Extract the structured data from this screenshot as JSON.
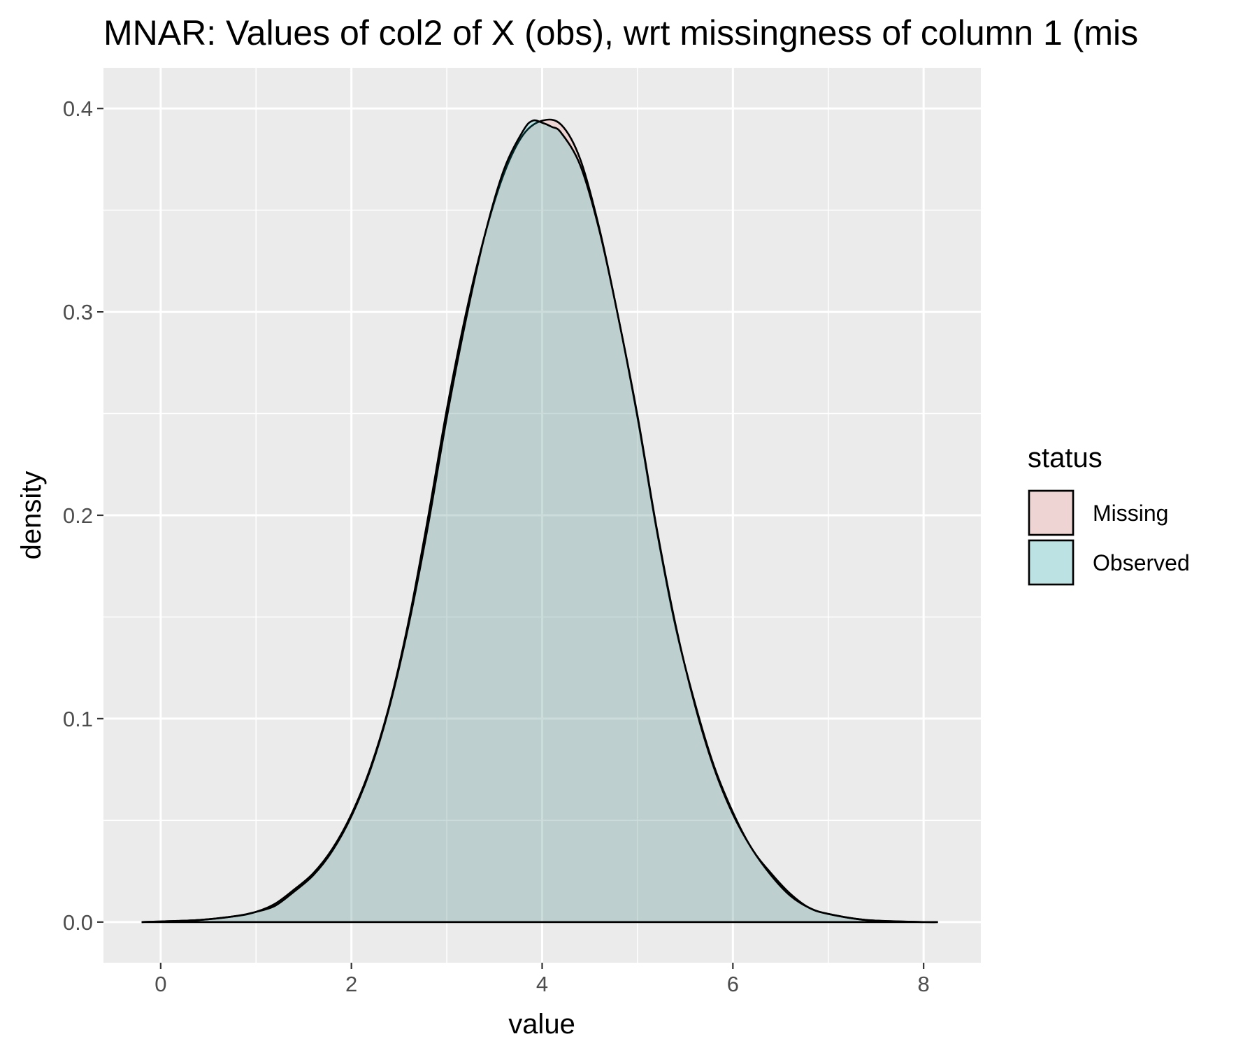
{
  "chart_data": {
    "type": "area",
    "subtype": "density",
    "title": "MNAR: Values of col2 of X (obs), wrt missingness of column 1 (mis",
    "xlabel": "value",
    "ylabel": "density",
    "xlim": [
      -0.6,
      8.6
    ],
    "ylim": [
      -0.02,
      0.42
    ],
    "x_ticks": [
      {
        "value": 0,
        "label": "0"
      },
      {
        "value": 2,
        "label": "2"
      },
      {
        "value": 4,
        "label": "4"
      },
      {
        "value": 6,
        "label": "6"
      },
      {
        "value": 8,
        "label": "8"
      }
    ],
    "y_ticks": [
      {
        "value": 0.0,
        "label": "0.0"
      },
      {
        "value": 0.1,
        "label": "0.1"
      },
      {
        "value": 0.2,
        "label": "0.2"
      },
      {
        "value": 0.3,
        "label": "0.3"
      },
      {
        "value": 0.4,
        "label": "0.4"
      }
    ],
    "grid": true,
    "legend": {
      "title": "status",
      "position": "right"
    },
    "series": [
      {
        "name": "Missing",
        "fill": "#F8766D",
        "fill_opacity": 0.2,
        "x": [
          -0.2,
          0.4,
          0.8,
          1.0,
          1.2,
          1.4,
          1.6,
          1.8,
          2.0,
          2.2,
          2.4,
          2.6,
          2.8,
          3.0,
          3.2,
          3.4,
          3.6,
          3.8,
          4.0,
          4.2,
          4.4,
          4.6,
          4.8,
          5.0,
          5.2,
          5.4,
          5.6,
          5.8,
          6.0,
          6.2,
          6.4,
          6.6,
          6.8,
          7.0,
          7.4,
          8.0
        ],
        "y": [
          0.0,
          0.001,
          0.003,
          0.005,
          0.009,
          0.016,
          0.024,
          0.036,
          0.053,
          0.076,
          0.107,
          0.148,
          0.198,
          0.252,
          0.299,
          0.338,
          0.368,
          0.387,
          0.394,
          0.392,
          0.375,
          0.341,
          0.297,
          0.248,
          0.193,
          0.145,
          0.108,
          0.077,
          0.054,
          0.036,
          0.024,
          0.014,
          0.007,
          0.004,
          0.001,
          0.0
        ]
      },
      {
        "name": "Observed",
        "fill": "#00BFC4",
        "fill_opacity": 0.2,
        "x": [
          -0.2,
          0.4,
          0.8,
          1.0,
          1.2,
          1.4,
          1.6,
          1.8,
          2.0,
          2.2,
          2.4,
          2.6,
          2.8,
          3.0,
          3.2,
          3.4,
          3.6,
          3.8,
          3.9,
          4.0,
          4.1,
          4.2,
          4.4,
          4.6,
          4.8,
          5.0,
          5.2,
          5.4,
          5.6,
          5.8,
          6.0,
          6.2,
          6.4,
          6.6,
          6.8,
          7.0,
          7.4,
          8.0,
          8.15
        ],
        "y": [
          0.0,
          0.001,
          0.003,
          0.005,
          0.008,
          0.015,
          0.023,
          0.035,
          0.052,
          0.075,
          0.106,
          0.146,
          0.194,
          0.248,
          0.296,
          0.338,
          0.37,
          0.389,
          0.394,
          0.393,
          0.391,
          0.388,
          0.372,
          0.34,
          0.297,
          0.249,
          0.194,
          0.146,
          0.107,
          0.076,
          0.053,
          0.036,
          0.023,
          0.013,
          0.007,
          0.004,
          0.001,
          0.0,
          0.0
        ]
      }
    ]
  }
}
